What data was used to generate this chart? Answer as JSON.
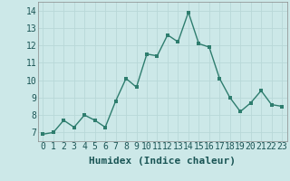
{
  "x": [
    0,
    1,
    2,
    3,
    4,
    5,
    6,
    7,
    8,
    9,
    10,
    11,
    12,
    13,
    14,
    15,
    16,
    17,
    18,
    19,
    20,
    21,
    22,
    23
  ],
  "y": [
    6.9,
    7.0,
    7.7,
    7.3,
    8.0,
    7.7,
    7.3,
    8.8,
    10.1,
    9.6,
    11.5,
    11.4,
    12.6,
    12.2,
    13.9,
    12.1,
    11.9,
    10.1,
    9.0,
    8.2,
    8.7,
    9.4,
    8.6,
    8.5
  ],
  "xlabel": "Humidex (Indice chaleur)",
  "ylabel": "",
  "xlim_min": -0.5,
  "xlim_max": 23.5,
  "ylim_min": 6.5,
  "ylim_max": 14.5,
  "yticks": [
    7,
    8,
    9,
    10,
    11,
    12,
    13,
    14
  ],
  "xticks": [
    0,
    1,
    2,
    3,
    4,
    5,
    6,
    7,
    8,
    9,
    10,
    11,
    12,
    13,
    14,
    15,
    16,
    17,
    18,
    19,
    20,
    21,
    22,
    23
  ],
  "line_color": "#2e7d6e",
  "marker_color": "#2e7d6e",
  "bg_color": "#cce8e8",
  "grid_color": "#b8d8d8",
  "xlabel_fontsize": 8,
  "tick_fontsize": 7,
  "line_width": 1.0,
  "marker_size": 2.5
}
